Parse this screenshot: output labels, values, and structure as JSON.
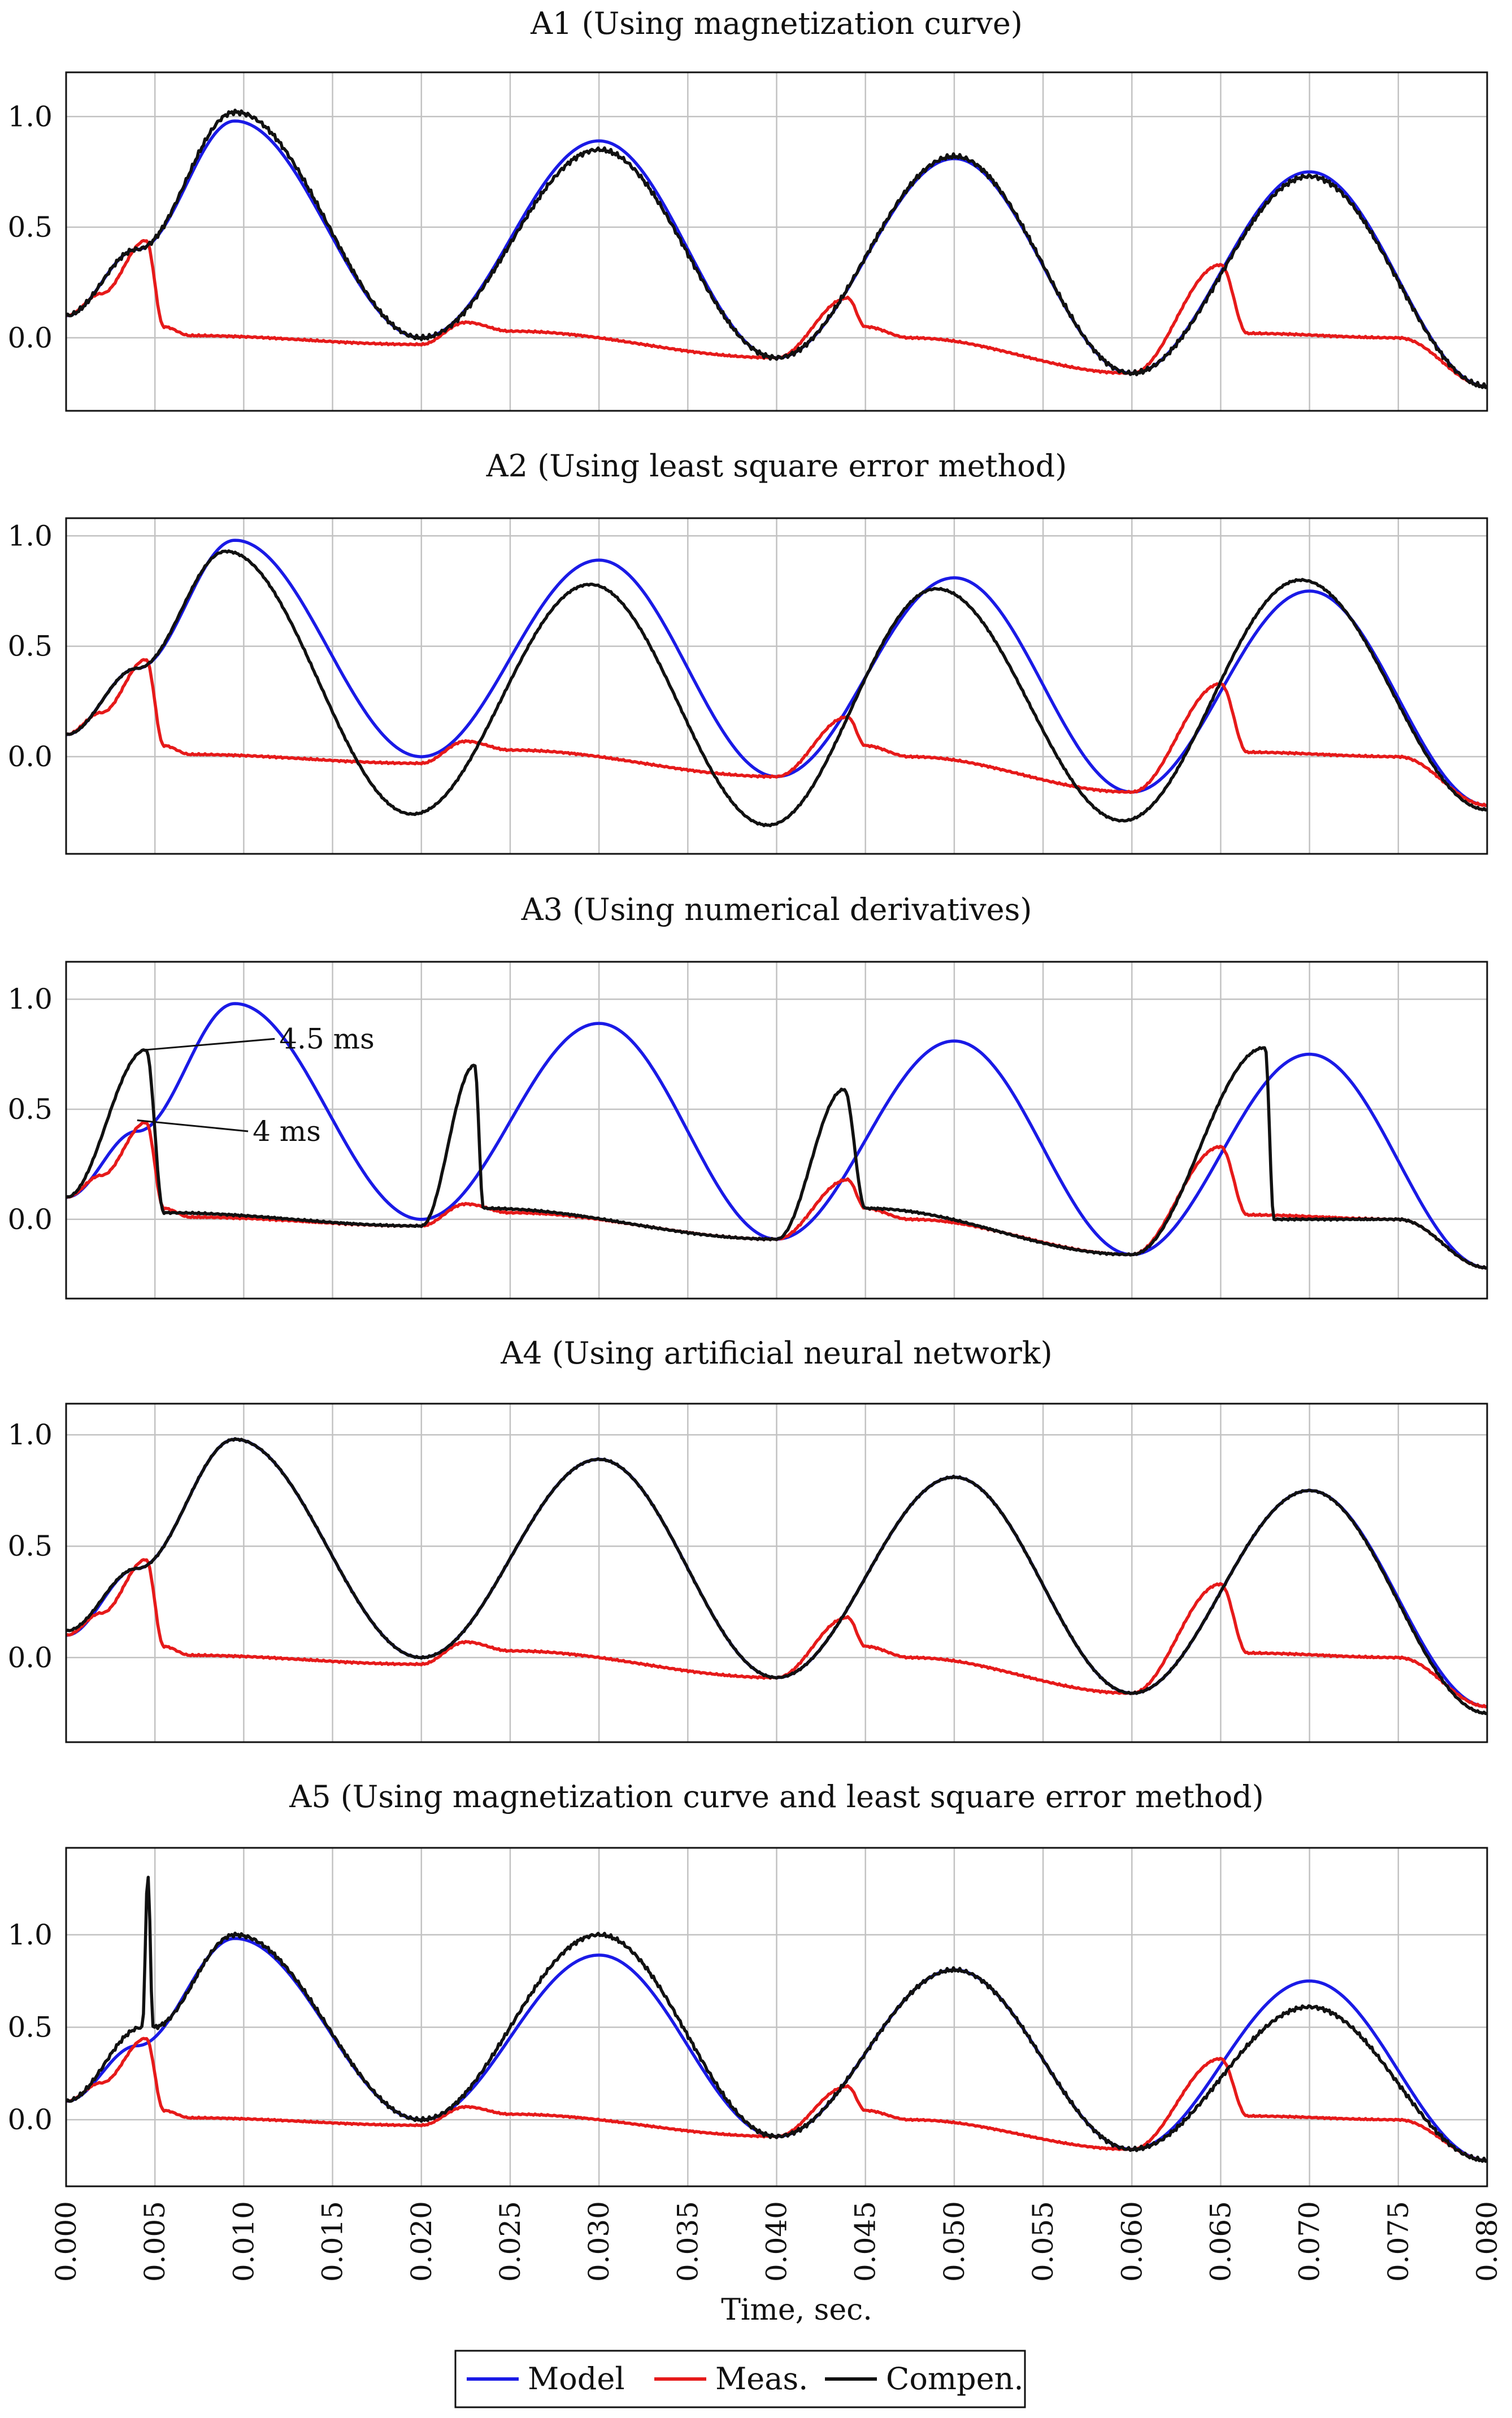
{
  "chart_data": {
    "type": "line",
    "xlabel": "Time, sec.",
    "x_ticks": [
      "0.000",
      "0.005",
      "0.010",
      "0.015",
      "0.020",
      "0.025",
      "0.030",
      "0.035",
      "0.040",
      "0.045",
      "0.050",
      "0.055",
      "0.060",
      "0.065",
      "0.070",
      "0.075",
      "0.080"
    ],
    "xlim": [
      0,
      0.08
    ],
    "grid": true,
    "legend": {
      "position": "bottom-center",
      "entries": [
        {
          "label": "Model",
          "color": "#1a1ae6"
        },
        {
          "label": "Meas.",
          "color": "#e61a1a"
        },
        {
          "label": "Compen.",
          "color": "#111111"
        }
      ]
    },
    "model": {
      "keypoints": [
        [
          0,
          0.1
        ],
        [
          0.004,
          0.4
        ],
        [
          0.0095,
          0.98
        ],
        [
          0.02,
          0
        ],
        [
          0.03,
          0.89
        ],
        [
          0.04,
          -0.09
        ],
        [
          0.05,
          0.81
        ],
        [
          0.06,
          -0.16
        ],
        [
          0.07,
          0.75
        ],
        [
          0.08,
          -0.22
        ]
      ]
    },
    "meas": {
      "keypoints": [
        [
          0,
          0.1
        ],
        [
          0.002,
          0.2
        ],
        [
          0.0045,
          0.44
        ],
        [
          0.0055,
          0.05
        ],
        [
          0.007,
          0.01
        ],
        [
          0.02,
          -0.03
        ],
        [
          0.0225,
          0.07
        ],
        [
          0.025,
          0.03
        ],
        [
          0.04,
          -0.09
        ],
        [
          0.044,
          0.18
        ],
        [
          0.045,
          0.05
        ],
        [
          0.0475,
          0
        ],
        [
          0.06,
          -0.16
        ],
        [
          0.065,
          0.33
        ],
        [
          0.0665,
          0.02
        ],
        [
          0.075,
          0
        ],
        [
          0.08,
          -0.22
        ]
      ]
    },
    "panels": [
      {
        "title": "A1 (Using magnetization curve)",
        "ylim": [
          -0.33,
          1.2
        ],
        "y_ticks": [
          "1.0",
          "0.5",
          "0.0"
        ],
        "compen_keypoints": [
          [
            0,
            0.1
          ],
          [
            0.004,
            0.4
          ],
          [
            0.0095,
            1.02
          ],
          [
            0.02,
            0
          ],
          [
            0.03,
            0.85
          ],
          [
            0.04,
            -0.09
          ],
          [
            0.05,
            0.82
          ],
          [
            0.06,
            -0.16
          ],
          [
            0.07,
            0.73
          ],
          [
            0.08,
            -0.22
          ]
        ]
      },
      {
        "title": "A2 (Using least square error method)",
        "ylim": [
          -0.44,
          1.08
        ],
        "y_ticks": [
          "1.0",
          "0.5",
          "0.0"
        ],
        "compen_keypoints": [
          [
            0,
            0.1
          ],
          [
            0.004,
            0.4
          ],
          [
            0.009,
            0.93
          ],
          [
            0.0195,
            -0.26
          ],
          [
            0.0295,
            0.78
          ],
          [
            0.0395,
            -0.31
          ],
          [
            0.049,
            0.76
          ],
          [
            0.0595,
            -0.29
          ],
          [
            0.0695,
            0.8
          ],
          [
            0.08,
            -0.24
          ]
        ]
      },
      {
        "title": "A3 (Using numerical derivatives)",
        "ylim": [
          -0.36,
          1.17
        ],
        "y_ticks": [
          "1.0",
          "0.5",
          "0.0"
        ],
        "compen_keypoints": [
          [
            0,
            0.1
          ],
          [
            0.0045,
            0.77
          ],
          [
            0.0055,
            0.03
          ],
          [
            0.02,
            -0.03
          ],
          [
            0.023,
            0.7
          ],
          [
            0.0235,
            0.05
          ],
          [
            0.04,
            -0.09
          ],
          [
            0.0438,
            0.59
          ],
          [
            0.045,
            0.05
          ],
          [
            0.06,
            -0.16
          ],
          [
            0.0675,
            0.78
          ],
          [
            0.068,
            0
          ],
          [
            0.075,
            0
          ],
          [
            0.08,
            -0.22
          ]
        ],
        "annotations": [
          {
            "label": "4.5 ms",
            "x": 0.0045,
            "y": 0.77
          },
          {
            "label": "4 ms",
            "x": 0.004,
            "y": 0.45
          }
        ]
      },
      {
        "title": "A4 (Using artificial neural network)",
        "ylim": [
          -0.38,
          1.14
        ],
        "y_ticks": [
          "1.0",
          "0.5",
          "0.0"
        ],
        "compen_keypoints": [
          [
            0,
            0.12
          ],
          [
            0.004,
            0.4
          ],
          [
            0.0095,
            0.98
          ],
          [
            0.02,
            0
          ],
          [
            0.03,
            0.89
          ],
          [
            0.04,
            -0.09
          ],
          [
            0.05,
            0.81
          ],
          [
            0.06,
            -0.16
          ],
          [
            0.07,
            0.75
          ],
          [
            0.08,
            -0.25
          ]
        ]
      },
      {
        "title": "A5 (Using magnetization curve and least square error method)",
        "ylim": [
          -0.36,
          1.47
        ],
        "y_ticks": [
          "1.0",
          "0.5",
          "0.0"
        ],
        "compen_keypoints": [
          [
            0,
            0.1
          ],
          [
            0.0043,
            0.5
          ],
          [
            0.0046,
            1.32
          ],
          [
            0.0049,
            0.5
          ],
          [
            0.0095,
            1.0
          ],
          [
            0.02,
            0
          ],
          [
            0.03,
            1.0
          ],
          [
            0.04,
            -0.09
          ],
          [
            0.05,
            0.81
          ],
          [
            0.06,
            -0.16
          ],
          [
            0.07,
            0.61
          ],
          [
            0.08,
            -0.22
          ]
        ]
      }
    ]
  }
}
